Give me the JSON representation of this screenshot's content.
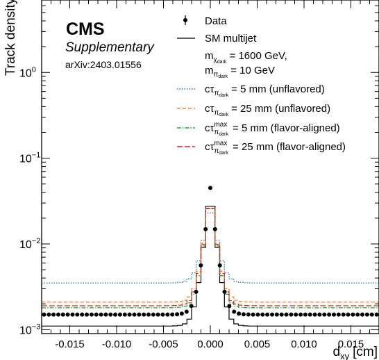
{
  "header": {
    "experiment": "CMS",
    "status": "Supplementary",
    "reference": "arXiv:2403.01556"
  },
  "chart_data": {
    "type": "line",
    "xlabel": {
      "main": "d",
      "sub": "xy",
      "unit": "[cm]"
    },
    "ylabel": "Track density",
    "xlim": [
      -0.018,
      0.018
    ],
    "ylim": [
      0.0009,
      7
    ],
    "yscale": "log",
    "grid": false,
    "legend_position": "top-right",
    "x_ticks": [
      {
        "value": -0.015,
        "label": "-0.015"
      },
      {
        "value": -0.01,
        "label": "-0.010"
      },
      {
        "value": -0.005,
        "label": "-0.005"
      },
      {
        "value": 0.0,
        "label": "0.000"
      },
      {
        "value": 0.005,
        "label": "0.005"
      },
      {
        "value": 0.01,
        "label": "0.010"
      },
      {
        "value": 0.015,
        "label": "0.015"
      }
    ],
    "y_ticks": [
      {
        "value": 0.001,
        "base": "10",
        "exp": "−3"
      },
      {
        "value": 0.01,
        "base": "10",
        "exp": "−2"
      },
      {
        "value": 0.1,
        "base": "10",
        "exp": "−1"
      },
      {
        "value": 1,
        "base": "10",
        "exp": "0"
      }
    ],
    "legend": {
      "data": "Data",
      "sm": "SM multijet",
      "mass_line1": {
        "pre": "m",
        "sub": "χ",
        "subsub": "dark",
        "post": " = 1600 GeV,"
      },
      "mass_line2": {
        "pre": "m",
        "sub": "π",
        "subsub": "dark",
        "post": " = 10 GeV"
      },
      "sig1": {
        "pre": "cτ",
        "sub": "π",
        "subsub": "dark",
        "post": " = 5 mm (unflavored)"
      },
      "sig2": {
        "pre": "cτ",
        "sub": "π",
        "subsub": "dark",
        "post": " = 25 mm (unflavored)"
      },
      "sig3": {
        "pre": "cτ",
        "sup": "max",
        "sub": "π",
        "subsub": "dark",
        "post": " = 5 mm (flavor-aligned)"
      },
      "sig4": {
        "pre": "cτ",
        "sup": "max",
        "sub": "π",
        "subsub": "dark",
        "post": " = 25 mm (flavor-aligned)"
      }
    },
    "colors": {
      "data": "#000000",
      "sm": "#000000",
      "sig1": "#1f77b4",
      "sig2": "#ff7f0e",
      "sig3": "#2ca02c",
      "sig4": "#d62728"
    },
    "series": [
      {
        "key": "sm",
        "peak": 0.049,
        "tail": 0.0011,
        "k": 0.00042
      },
      {
        "key": "sig1",
        "peak": 0.035,
        "tail": 0.0035,
        "k": 0.00052
      },
      {
        "key": "sig2",
        "peak": 0.043,
        "tail": 0.0021,
        "k": 0.00046
      },
      {
        "key": "sig3",
        "peak": 0.044,
        "tail": 0.0018,
        "k": 0.00044
      },
      {
        "key": "sig4",
        "peak": 0.044,
        "tail": 0.0019,
        "k": 0.00045
      }
    ],
    "data_points": {
      "peak": 0.045,
      "tail": 0.0015,
      "k": 0.00043,
      "n": 71
    }
  }
}
